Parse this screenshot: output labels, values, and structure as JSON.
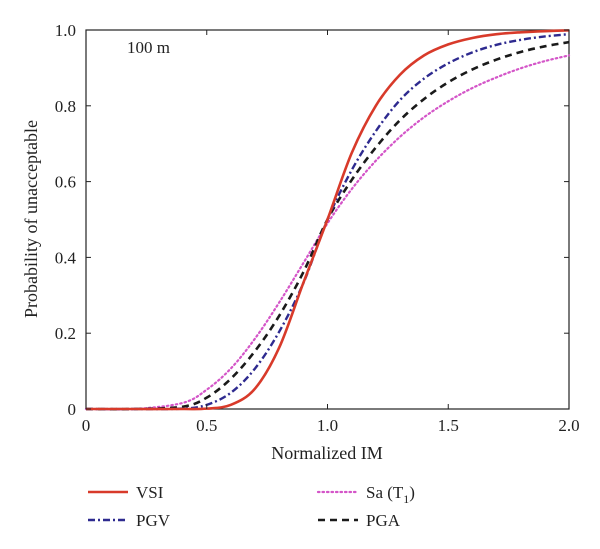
{
  "chart_data": {
    "type": "line",
    "annotation": "100 m",
    "xlabel": "Normalized IM",
    "ylabel": "Probability of unacceptable",
    "xlim": [
      0,
      2.0
    ],
    "ylim": [
      0,
      1.0
    ],
    "x_ticks": [
      "0",
      "0.5",
      "1.0",
      "1.5",
      "2.0"
    ],
    "y_ticks": [
      "0",
      "0.2",
      "0.4",
      "0.6",
      "0.8",
      "1.0"
    ],
    "grid": false,
    "legend_position": "bottom",
    "x": [
      0,
      0.2,
      0.4,
      0.5,
      0.6,
      0.7,
      0.8,
      0.9,
      1.0,
      1.1,
      1.2,
      1.3,
      1.4,
      1.5,
      1.6,
      1.7,
      1.8,
      1.9,
      2.0
    ],
    "series": [
      {
        "name": "VSI",
        "color": "#d83a2a",
        "dash": "solid",
        "values": [
          0,
          0,
          0,
          0.001,
          0.011,
          0.054,
          0.162,
          0.333,
          0.5,
          0.675,
          0.8,
          0.882,
          0.933,
          0.962,
          0.979,
          0.989,
          0.994,
          0.997,
          0.999
        ]
      },
      {
        "name": "PGV",
        "color": "#2e2a8f",
        "dash": "dashdot",
        "values": [
          0,
          0,
          0.001,
          0.011,
          0.043,
          0.107,
          0.204,
          0.332,
          0.5,
          0.63,
          0.733,
          0.815,
          0.872,
          0.912,
          0.941,
          0.961,
          0.974,
          0.983,
          0.989
        ]
      },
      {
        "name": "Sa (T",
        "subscript": "1",
        "name_suffix": ")",
        "color": "#d455c8",
        "dash": "dotted",
        "values": [
          0,
          0,
          0.016,
          0.051,
          0.107,
          0.186,
          0.281,
          0.385,
          0.49,
          0.58,
          0.655,
          0.718,
          0.77,
          0.812,
          0.847,
          0.875,
          0.899,
          0.918,
          0.933
        ]
      },
      {
        "name": "PGA",
        "color": "#1a1a1a",
        "dash": "dashed",
        "values": [
          0,
          0,
          0.006,
          0.03,
          0.08,
          0.153,
          0.246,
          0.361,
          0.5,
          0.604,
          0.69,
          0.762,
          0.818,
          0.862,
          0.896,
          0.922,
          0.942,
          0.957,
          0.968
        ]
      }
    ]
  }
}
